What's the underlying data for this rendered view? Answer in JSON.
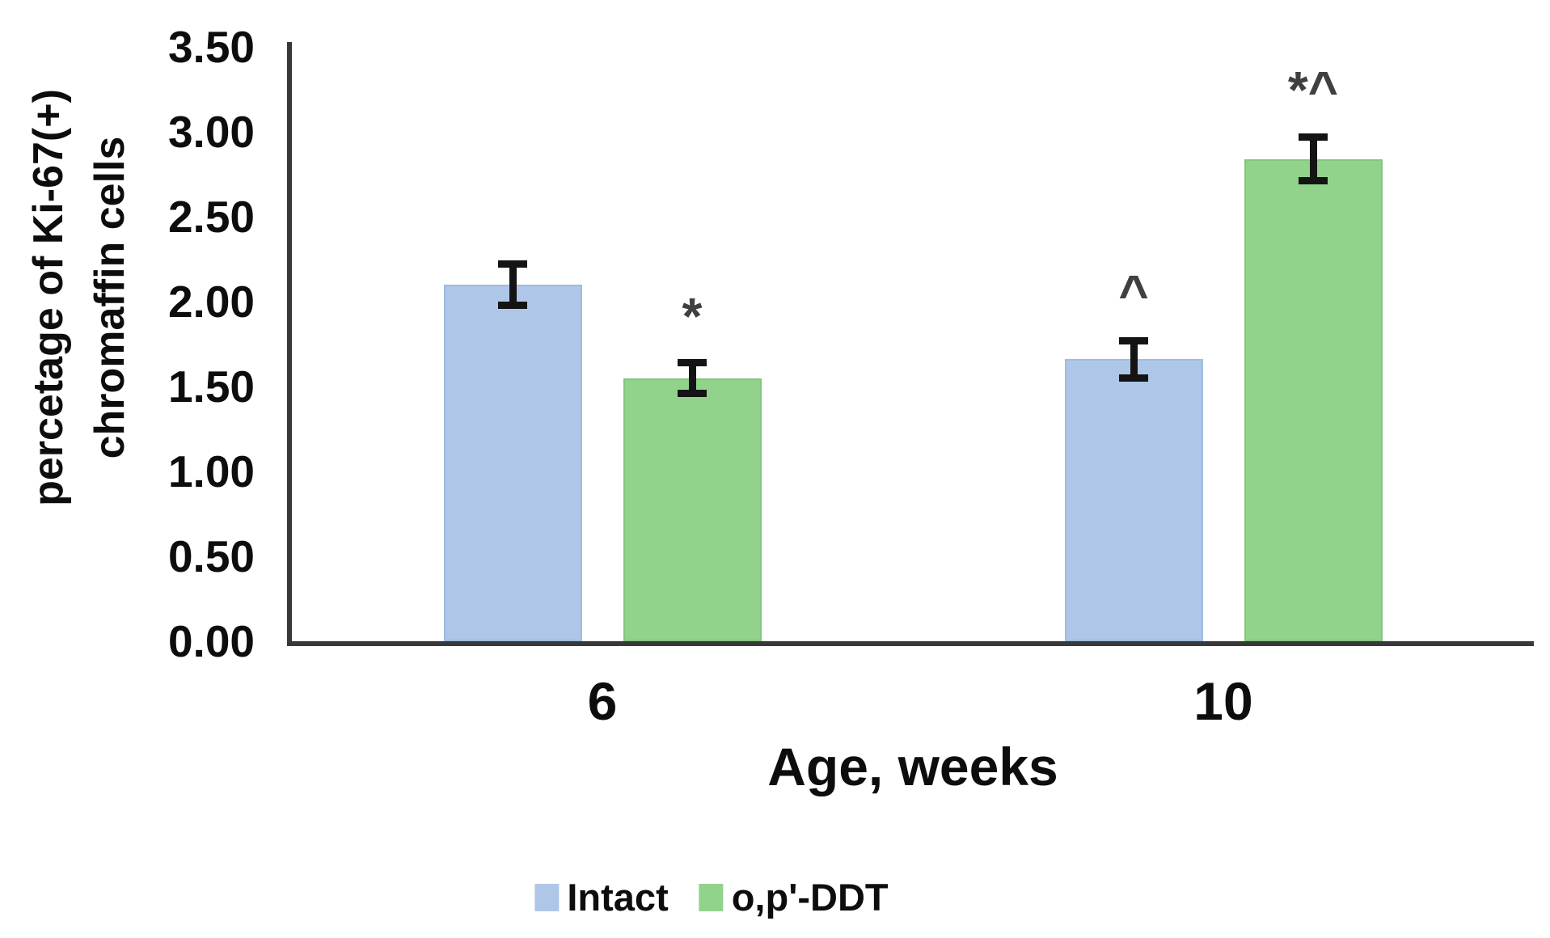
{
  "figure": {
    "background": "#ffffff"
  },
  "chart_data": {
    "type": "bar",
    "title": "",
    "xlabel": "Age, weeks",
    "ylabel": "percetage of Ki-67(+)\nchromaffin cells",
    "categories": [
      "6",
      "10"
    ],
    "series": [
      {
        "name": "Intact",
        "color": "#aec7e8",
        "border_color": "#9fbcdf",
        "values": [
          2.1,
          1.66
        ],
        "errors": [
          0.12,
          0.11
        ],
        "annotations": [
          "",
          "^"
        ]
      },
      {
        "name": "o,p'-DDT",
        "color": "#91d38b",
        "border_color": "#82c77c",
        "values": [
          1.55,
          2.84
        ],
        "errors": [
          0.09,
          0.13
        ],
        "annotations": [
          "*",
          "*^"
        ]
      }
    ],
    "ylim": [
      0,
      3.5
    ],
    "ytick_step": 0.5,
    "yticks": [
      "0.00",
      "0.50",
      "1.00",
      "1.50",
      "2.00",
      "2.50",
      "3.00",
      "3.50"
    ],
    "grid": false,
    "legend_position": "bottom",
    "axis_color": "#383838",
    "error_bar_color": "#141414",
    "annotation_color": "#404040"
  }
}
